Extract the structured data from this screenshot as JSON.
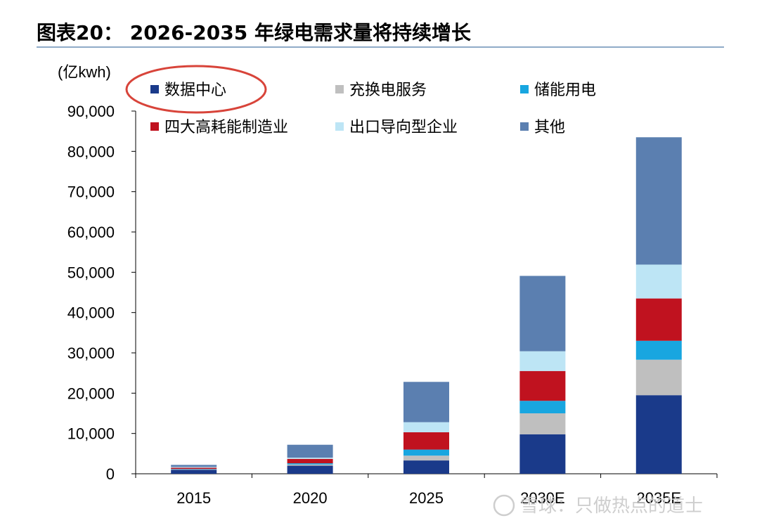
{
  "chart_data": {
    "type": "bar",
    "stacked": true,
    "title": "图表20： 2026-2035 年绿电需求量将持续增长",
    "ylabel": "(亿kwh)",
    "ylim": [
      0,
      90000
    ],
    "yticks": [
      0,
      10000,
      20000,
      30000,
      40000,
      50000,
      60000,
      70000,
      80000,
      90000
    ],
    "ytick_labels": [
      "0",
      "10,000",
      "20,000",
      "30,000",
      "40,000",
      "50,000",
      "60,000",
      "70,000",
      "80,000",
      "90,000"
    ],
    "categories": [
      "2015",
      "2020",
      "2025",
      "2030E",
      "2035E"
    ],
    "grid": false,
    "legend_position": "top",
    "series": [
      {
        "name": "数据中心",
        "color": "#1a3a8a",
        "values": [
          1000,
          2000,
          3300,
          9800,
          19500
        ]
      },
      {
        "name": "充换电服务",
        "color": "#bfbfbf",
        "values": [
          100,
          300,
          1200,
          5200,
          8800
        ]
      },
      {
        "name": "储能用电",
        "color": "#18a6e0",
        "values": [
          100,
          300,
          1500,
          3100,
          4700
        ]
      },
      {
        "name": "四大高耗能制造业",
        "color": "#c0121f",
        "values": [
          300,
          1100,
          4300,
          7400,
          10500
        ]
      },
      {
        "name": "出口导向型企业",
        "color": "#bde5f5",
        "values": [
          200,
          300,
          2500,
          4900,
          8400
        ]
      },
      {
        "name": "其他",
        "color": "#5b7fb0",
        "values": [
          500,
          3200,
          10000,
          18700,
          31600
        ]
      }
    ]
  },
  "watermark": "雪球：只做热点的道士"
}
